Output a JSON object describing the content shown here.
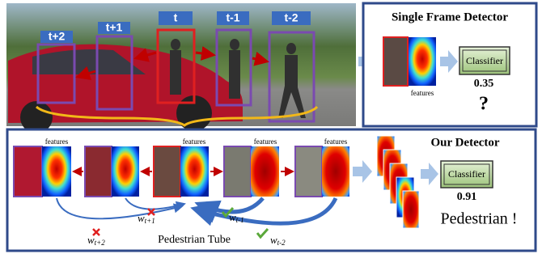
{
  "top_photo": {
    "frame_labels": [
      "t+2",
      "t+1",
      "t",
      "t-1",
      "t-2"
    ]
  },
  "single_frame": {
    "title": "Single Frame Detector",
    "features": "features",
    "classifier": "Classifier",
    "score": "0.35",
    "verdict": "?"
  },
  "our_detector": {
    "title": "Our Detector",
    "features": [
      "features",
      "features",
      "features",
      "features"
    ],
    "classifier": "Classifier",
    "score": "0.91",
    "result": "Pedestrian !",
    "weights": [
      {
        "base": "w",
        "sub": "t+1"
      },
      {
        "base": "w",
        "sub": "t-1"
      },
      {
        "base": "w",
        "sub": "t+2"
      },
      {
        "base": "w",
        "sub": "t-2"
      }
    ],
    "tube": "Pedestrian Tube"
  }
}
